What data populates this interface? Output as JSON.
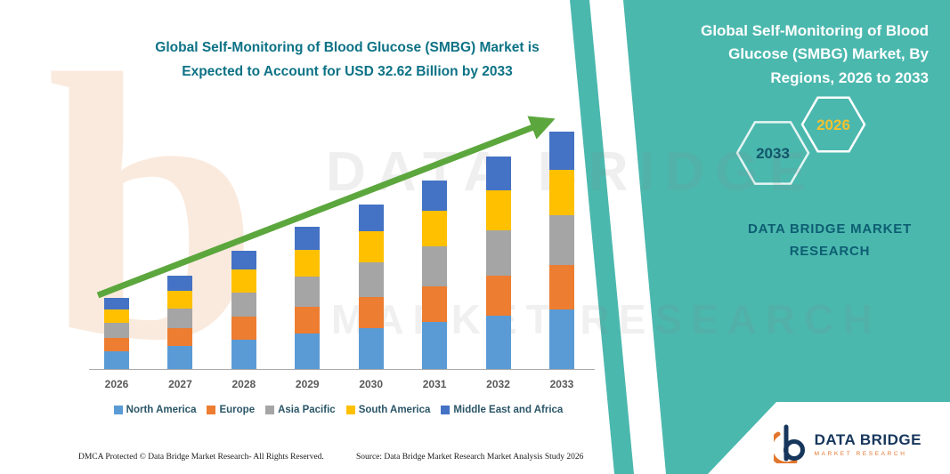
{
  "colors": {
    "teal": "#4BB8AE",
    "title_color": "#0C7285",
    "navy": "#11566B",
    "gold": "#F2C230",
    "brand_teal": "#0D5E72",
    "legend_text": "#2B5668",
    "logo_navy": "#16365C",
    "logo_orange": "#E2762D"
  },
  "header": {
    "line1": "Global Self-Monitoring of Blood Glucose (SMBG) Market is",
    "line2": "Expected to Account for USD 32.62 Billion by 2033"
  },
  "right_panel": {
    "title": "Global Self-Monitoring of Blood Glucose (SMBG) Market, By Regions, 2026 to 2033",
    "back_year": "2033",
    "front_year": "2026",
    "brand_line1": "DATA BRIDGE MARKET",
    "brand_line2": "RESEARCH"
  },
  "watermark": {
    "line1": "DATA BRIDGE",
    "line2": "MARKET RESEARCH",
    "monogram": "b"
  },
  "footer": {
    "dmca": "DMCA Protected © Data Bridge Market Research-  All Rights Reserved.",
    "source": "Source: Data Bridge Market Research  Market Analysis Study 2026"
  },
  "logo": {
    "name": "DATA BRIDGE",
    "subtitle": "MARKET RESEARCH"
  },
  "chart_data": {
    "type": "bar",
    "stacked": true,
    "title": "Global Self-Monitoring of Blood Glucose (SMBG) Market is Expected to Account for USD 32.62 Billion by 2033",
    "unit": "USD Billion",
    "categories": [
      "2026",
      "2027",
      "2028",
      "2029",
      "2030",
      "2031",
      "2032",
      "2033"
    ],
    "series": [
      {
        "name": "North America",
        "color": "#5B9BD5",
        "values": [
          2.45,
          3.2,
          4.08,
          4.9,
          5.65,
          6.48,
          7.33,
          8.16
        ]
      },
      {
        "name": "Europe",
        "color": "#ED7D31",
        "values": [
          1.86,
          2.43,
          3.1,
          3.72,
          4.29,
          4.92,
          5.57,
          6.2
        ]
      },
      {
        "name": "Asia Pacific",
        "color": "#A5A5A5",
        "values": [
          2.06,
          2.69,
          3.42,
          4.12,
          4.75,
          5.44,
          6.15,
          6.85
        ]
      },
      {
        "name": "South America",
        "color": "#FFC000",
        "values": [
          1.86,
          2.43,
          3.1,
          3.72,
          4.29,
          4.92,
          5.57,
          6.2
        ]
      },
      {
        "name": "Middle East and Africa",
        "color": "#4472C4",
        "values": [
          1.57,
          2.05,
          2.61,
          3.14,
          3.62,
          4.14,
          4.69,
          5.21
        ]
      }
    ],
    "totals": [
      9.8,
      12.8,
      16.31,
      19.6,
      22.6,
      25.9,
      29.31,
      32.62
    ],
    "ylim": [
      0,
      35
    ],
    "y_axis_visible": false,
    "gridlines": false,
    "legend_position": "bottom",
    "trend_arrow": {
      "direction": "up",
      "color": "#5CA73D"
    }
  }
}
